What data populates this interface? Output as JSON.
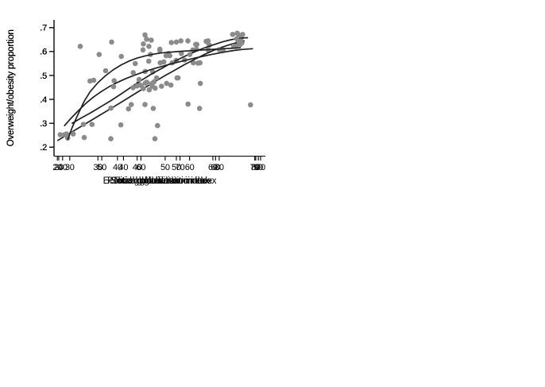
{
  "figure": {
    "background": "#ffffff",
    "axis_color": "#000000",
    "text_color": "#000000",
    "point_color": "#8b8b8b",
    "fit_line_color": "#1f1f1f"
  },
  "chart_data": [
    {
      "type": "scatter",
      "panel": "top-left",
      "title": "",
      "xlabel": "Total globalization index",
      "ylabel": "Overweight/obesity proportion",
      "xticks": [
        30,
        40,
        50,
        60,
        70
      ],
      "xtick_labels": [
        "30",
        "40",
        "50",
        "60",
        "70"
      ],
      "yticks": [
        0.2,
        0.3,
        0.4,
        0.5,
        0.6,
        0.7
      ],
      "ytick_labels": [
        ".2",
        ".3",
        ".4",
        ".5",
        ".6",
        ".7"
      ],
      "xlim": [
        26.7,
        71.0
      ],
      "ylim": [
        0.162,
        0.733
      ],
      "grid": false,
      "legend": "none",
      "points": [
        [
          28.0,
          0.252
        ],
        [
          38.6,
          0.235
        ],
        [
          39.3,
          0.478
        ],
        [
          40.7,
          0.293
        ],
        [
          45.8,
          0.517
        ],
        [
          47.3,
          0.455
        ],
        [
          47.9,
          0.447
        ],
        [
          47.5,
          0.362
        ],
        [
          50.2,
          0.583
        ],
        [
          50.7,
          0.592
        ],
        [
          51.3,
          0.638
        ],
        [
          52.3,
          0.563
        ],
        [
          50.3,
          0.467
        ],
        [
          51.2,
          0.46
        ],
        [
          52.5,
          0.49
        ],
        [
          53.3,
          0.645
        ],
        [
          54.8,
          0.38
        ],
        [
          55.9,
          0.553
        ],
        [
          57.3,
          0.553
        ],
        [
          56.6,
          0.61
        ],
        [
          59.0,
          0.645
        ],
        [
          59.0,
          0.607
        ],
        [
          64.8,
          0.623
        ],
        [
          65.1,
          0.677
        ],
        [
          65.5,
          0.668
        ],
        [
          65.3,
          0.64
        ],
        [
          66.1,
          0.637
        ]
      ],
      "fit_line": [
        [
          27.5,
          0.228
        ],
        [
          30,
          0.258
        ],
        [
          33,
          0.294
        ],
        [
          36,
          0.33
        ],
        [
          39,
          0.366
        ],
        [
          42,
          0.403
        ],
        [
          45,
          0.44
        ],
        [
          48,
          0.476
        ],
        [
          50,
          0.5
        ],
        [
          52,
          0.522
        ],
        [
          54,
          0.545
        ],
        [
          56,
          0.566
        ],
        [
          58,
          0.586
        ],
        [
          60,
          0.604
        ],
        [
          62,
          0.619
        ],
        [
          64,
          0.632
        ],
        [
          65.5,
          0.64
        ],
        [
          66.5,
          0.645
        ]
      ]
    },
    {
      "type": "scatter",
      "panel": "top-right",
      "title": "",
      "xlabel": "Economic globalization index",
      "ylabel": "Overweight/obesity proportion",
      "xticks": [
        20,
        40,
        60,
        80
      ],
      "xtick_labels": [
        "20",
        "40",
        "60",
        "80"
      ],
      "yticks": [
        0.2,
        0.3,
        0.4,
        0.5,
        0.6,
        0.7
      ],
      "ytick_labels": [
        ".2",
        ".3",
        ".4",
        ".5",
        ".6",
        ".7"
      ],
      "xlim": [
        19.0,
        82.9
      ],
      "ylim": [
        0.162,
        0.733
      ],
      "grid": false,
      "legend": "none",
      "points": [
        [
          24.8,
          0.255
        ],
        [
          31.0,
          0.48
        ],
        [
          41.5,
          0.36
        ],
        [
          44.5,
          0.465
        ],
        [
          46.0,
          0.445
        ],
        [
          46.5,
          0.378
        ],
        [
          48.8,
          0.515
        ],
        [
          49.2,
          0.473
        ],
        [
          49.5,
          0.235
        ],
        [
          50.3,
          0.29
        ],
        [
          51.0,
          0.61
        ],
        [
          51.5,
          0.455
        ],
        [
          52.2,
          0.557
        ],
        [
          54.0,
          0.583
        ],
        [
          56.0,
          0.64
        ],
        [
          56.5,
          0.49
        ],
        [
          57.5,
          0.592
        ],
        [
          58.5,
          0.565
        ],
        [
          61.0,
          0.607
        ],
        [
          62.2,
          0.63
        ],
        [
          62.5,
          0.552
        ],
        [
          65.0,
          0.643
        ],
        [
          66.0,
          0.627
        ],
        [
          73.0,
          0.672
        ],
        [
          73.3,
          0.623
        ],
        [
          75.0,
          0.637
        ],
        [
          75.7,
          0.659
        ]
      ],
      "fit_line": [
        [
          24.5,
          0.3
        ],
        [
          27,
          0.32
        ],
        [
          30,
          0.343
        ],
        [
          33,
          0.368
        ],
        [
          36,
          0.393
        ],
        [
          39,
          0.42
        ],
        [
          42,
          0.448
        ],
        [
          45,
          0.476
        ],
        [
          48,
          0.502
        ],
        [
          50,
          0.518
        ],
        [
          52,
          0.533
        ],
        [
          54,
          0.549
        ],
        [
          56,
          0.563
        ],
        [
          58,
          0.577
        ],
        [
          60,
          0.59
        ],
        [
          62,
          0.602
        ],
        [
          64,
          0.613
        ],
        [
          66,
          0.623
        ],
        [
          68,
          0.632
        ],
        [
          70,
          0.641
        ],
        [
          72,
          0.648
        ],
        [
          74,
          0.654
        ],
        [
          76,
          0.657
        ],
        [
          77.5,
          0.658
        ]
      ]
    },
    {
      "type": "scatter",
      "panel": "bottom-left",
      "title": "",
      "xlabel": "Political globalization index",
      "ylabel": "Overweight/obesity proportion",
      "xticks": [
        40,
        50,
        60,
        70,
        80,
        90
      ],
      "xtick_labels": [
        "40",
        "50",
        "60",
        "70",
        "80",
        "90"
      ],
      "yticks": [
        0.2,
        0.3,
        0.4,
        0.5,
        0.6,
        0.7
      ],
      "ytick_labels": [
        ".2",
        ".3",
        ".4",
        ".5",
        ".6",
        ".7"
      ],
      "xlim": [
        37.8,
        91.8
      ],
      "ylim": [
        0.162,
        0.733
      ],
      "grid": false,
      "legend": "none",
      "points": [
        [
          40.5,
          0.252
        ],
        [
          41.3,
          0.238
        ],
        [
          44.5,
          0.622
        ],
        [
          47.0,
          0.477
        ],
        [
          47.5,
          0.295
        ],
        [
          51.0,
          0.52
        ],
        [
          55.0,
          0.58
        ],
        [
          58.0,
          0.449
        ],
        [
          59.0,
          0.456
        ],
        [
          61.5,
          0.472
        ],
        [
          62.0,
          0.56
        ],
        [
          64.0,
          0.49
        ],
        [
          68.0,
          0.553
        ],
        [
          72.0,
          0.645
        ],
        [
          72.5,
          0.588
        ],
        [
          74.0,
          0.63
        ],
        [
          75.0,
          0.362
        ],
        [
          75.2,
          0.467
        ],
        [
          77.0,
          0.64
        ],
        [
          80.0,
          0.608
        ],
        [
          81.0,
          0.606
        ],
        [
          84.2,
          0.622
        ],
        [
          84.5,
          0.654
        ],
        [
          85.5,
          0.644
        ],
        [
          86.0,
          0.672
        ],
        [
          88.0,
          0.377
        ]
      ],
      "fit_line": [
        [
          40.5,
          0.29
        ],
        [
          42,
          0.318
        ],
        [
          44,
          0.352
        ],
        [
          46,
          0.384
        ],
        [
          48,
          0.411
        ],
        [
          50,
          0.434
        ],
        [
          52,
          0.454
        ],
        [
          54,
          0.471
        ],
        [
          56,
          0.486
        ],
        [
          58,
          0.499
        ],
        [
          60,
          0.511
        ],
        [
          62,
          0.522
        ],
        [
          64,
          0.532
        ],
        [
          66,
          0.541
        ],
        [
          68,
          0.55
        ],
        [
          70,
          0.558
        ],
        [
          72,
          0.566
        ],
        [
          74,
          0.574
        ],
        [
          76,
          0.581
        ],
        [
          78,
          0.588
        ],
        [
          80,
          0.594
        ],
        [
          82,
          0.6
        ],
        [
          84,
          0.605
        ],
        [
          86,
          0.609
        ],
        [
          88.5,
          0.612
        ]
      ]
    },
    {
      "type": "scatter",
      "panel": "bottom-right",
      "title": "",
      "xlabel": "Social globalization index",
      "ylabel": "Overweight/obesity proportion",
      "xticks": [
        20,
        30,
        40,
        50,
        60,
        70
      ],
      "xtick_labels": [
        "20",
        "30",
        "40",
        "50",
        "60",
        "70"
      ],
      "yticks": [
        0.2,
        0.3,
        0.4,
        0.5,
        0.6,
        0.7
      ],
      "ytick_labels": [
        ".2",
        ".3",
        ".4",
        ".5",
        ".6",
        ".7"
      ],
      "xlim": [
        18.8,
        72.7
      ],
      "ylim": [
        0.162,
        0.733
      ],
      "grid": false,
      "legend": "none",
      "points": [
        [
          22.0,
          0.255
        ],
        [
          26.3,
          0.295
        ],
        [
          26.5,
          0.24
        ],
        [
          30.3,
          0.588
        ],
        [
          33.3,
          0.363
        ],
        [
          33.5,
          0.64
        ],
        [
          34.0,
          0.453
        ],
        [
          38.5,
          0.378
        ],
        [
          39.0,
          0.512
        ],
        [
          39.5,
          0.55
        ],
        [
          40.5,
          0.483
        ],
        [
          41.0,
          0.458
        ],
        [
          41.5,
          0.607
        ],
        [
          41.6,
          0.632
        ],
        [
          42.0,
          0.67
        ],
        [
          42.4,
          0.652
        ],
        [
          42.1,
          0.468
        ],
        [
          43.0,
          0.622
        ],
        [
          43.1,
          0.44
        ],
        [
          43.6,
          0.465
        ],
        [
          43.6,
          0.648
        ],
        [
          43.4,
          0.588
        ],
        [
          45.8,
          0.605
        ],
        [
          45.9,
          0.553
        ],
        [
          66.3,
          0.63
        ]
      ],
      "fit_line": [
        [
          22.3,
          0.232
        ],
        [
          23.5,
          0.285
        ],
        [
          25,
          0.34
        ],
        [
          26.5,
          0.392
        ],
        [
          28,
          0.432
        ],
        [
          30,
          0.47
        ],
        [
          32,
          0.5
        ],
        [
          34,
          0.525
        ],
        [
          36,
          0.545
        ],
        [
          38,
          0.561
        ],
        [
          40,
          0.573
        ],
        [
          42,
          0.582
        ],
        [
          44,
          0.589
        ],
        [
          46,
          0.594
        ],
        [
          48,
          0.597
        ],
        [
          51,
          0.601
        ],
        [
          54,
          0.604
        ],
        [
          58,
          0.608
        ],
        [
          62,
          0.612
        ],
        [
          66.3,
          0.616
        ]
      ]
    }
  ]
}
